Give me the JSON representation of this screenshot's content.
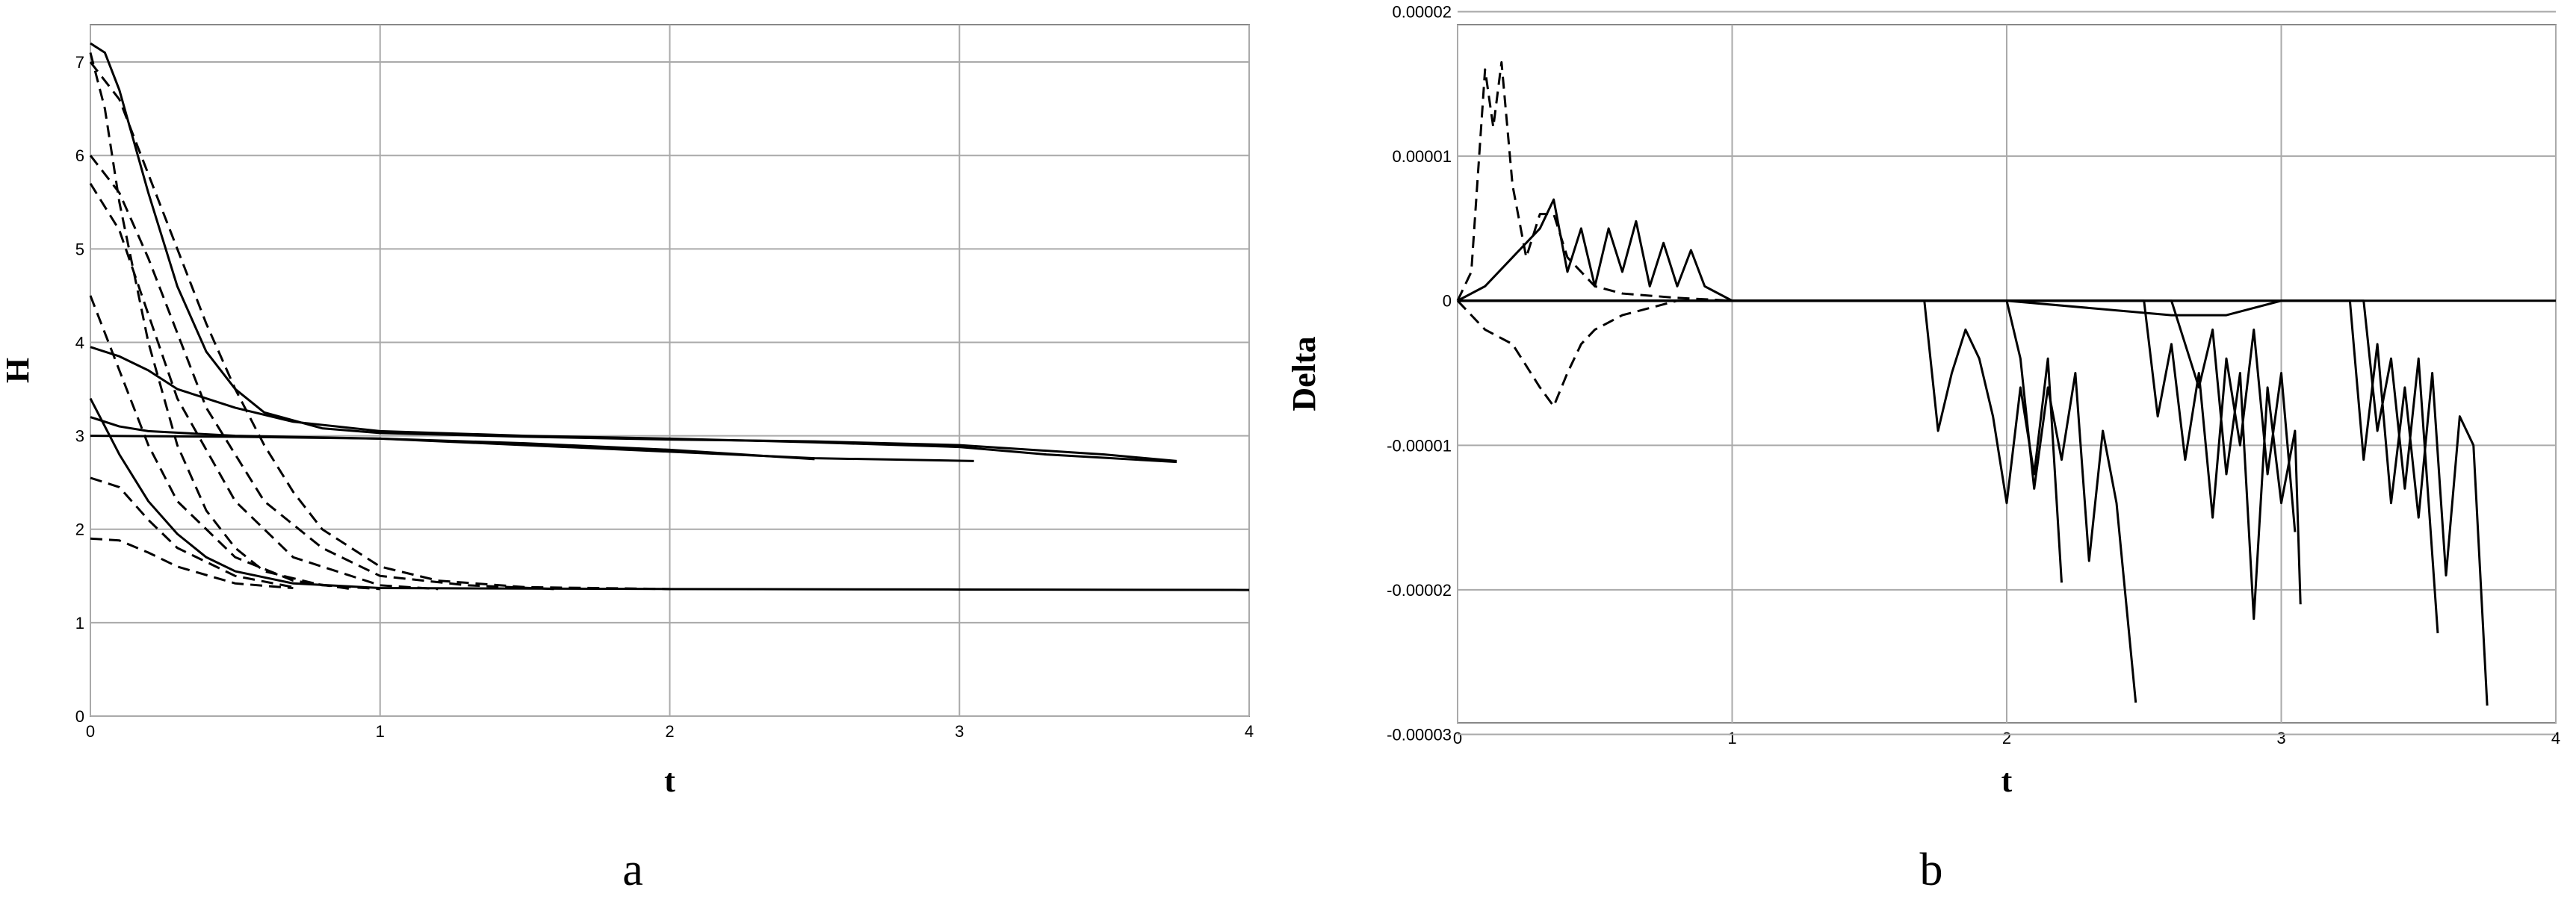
{
  "chart_data": [
    {
      "type": "line",
      "xlabel": "t",
      "ylabel": "H",
      "caption": "a",
      "xlim": [
        0,
        4
      ],
      "xticks": [
        0,
        1,
        2,
        3,
        4
      ],
      "ylim": [
        0,
        7.4
      ],
      "yticks": [
        0,
        1,
        2,
        3,
        4,
        5,
        6,
        7
      ],
      "grid": true,
      "series": [
        {
          "color": "#000000",
          "dash": false,
          "x": [
            0,
            0.05,
            0.1,
            0.2,
            0.3,
            0.4,
            0.5,
            0.6,
            0.8,
            1,
            1.5,
            2,
            2.5,
            3,
            3.5,
            3.75
          ],
          "values": [
            7.2,
            7.1,
            6.7,
            5.6,
            4.6,
            3.9,
            3.5,
            3.25,
            3.08,
            3.03,
            2.99,
            2.96,
            2.94,
            2.9,
            2.8,
            2.73
          ]
        },
        {
          "color": "#000000",
          "dash": false,
          "x": [
            0,
            0.1,
            0.2,
            0.3,
            0.5,
            0.7,
            1,
            1.5,
            2,
            2.5,
            3,
            3.3,
            3.75
          ],
          "values": [
            3.95,
            3.85,
            3.7,
            3.5,
            3.3,
            3.15,
            3.05,
            3.0,
            2.97,
            2.93,
            2.88,
            2.8,
            2.72
          ]
        },
        {
          "color": "#000000",
          "dash": false,
          "x": [
            0,
            0.1,
            0.2,
            0.5,
            1,
            1.5,
            2,
            2.5,
            3.05
          ],
          "values": [
            3.2,
            3.1,
            3.05,
            3.0,
            2.97,
            2.9,
            2.83,
            2.76,
            2.73
          ]
        },
        {
          "color": "#000000",
          "dash": false,
          "x": [
            0,
            0.5,
            1,
            1.5,
            2,
            2.5
          ],
          "values": [
            3.0,
            2.99,
            2.97,
            2.92,
            2.85,
            2.75
          ]
        },
        {
          "color": "#000000",
          "dash": false,
          "x": [
            0,
            0.1,
            0.2,
            0.3,
            0.4,
            0.5,
            0.7,
            1,
            2,
            3,
            4
          ],
          "values": [
            3.4,
            2.8,
            2.3,
            1.95,
            1.7,
            1.55,
            1.42,
            1.37,
            1.36,
            1.355,
            1.35
          ]
        },
        {
          "color": "#000000",
          "dash": true,
          "x": [
            0,
            0.1,
            0.2,
            0.3,
            0.4,
            0.5,
            0.6,
            0.7,
            0.8,
            1,
            1.2,
            1.5,
            2
          ],
          "values": [
            7.0,
            6.6,
            5.8,
            5.0,
            4.2,
            3.5,
            2.9,
            2.4,
            2.0,
            1.6,
            1.45,
            1.38,
            1.36
          ]
        },
        {
          "color": "#000000",
          "dash": true,
          "x": [
            0,
            0.1,
            0.2,
            0.3,
            0.4,
            0.6,
            0.8,
            1,
            1.3,
            1.6
          ],
          "values": [
            6.0,
            5.6,
            4.9,
            4.1,
            3.3,
            2.3,
            1.8,
            1.5,
            1.4,
            1.36
          ]
        },
        {
          "color": "#000000",
          "dash": true,
          "x": [
            0,
            0.1,
            0.2,
            0.3,
            0.5,
            0.7,
            1,
            1.2
          ],
          "values": [
            5.7,
            5.2,
            4.3,
            3.4,
            2.3,
            1.7,
            1.4,
            1.36
          ]
        },
        {
          "color": "#000000",
          "dash": true,
          "x": [
            0,
            0.1,
            0.2,
            0.3,
            0.5,
            0.7,
            0.9
          ],
          "values": [
            4.5,
            3.7,
            2.9,
            2.3,
            1.7,
            1.45,
            1.36
          ]
        },
        {
          "color": "#000000",
          "dash": true,
          "x": [
            0,
            0.1,
            0.2,
            0.3,
            0.5,
            0.7
          ],
          "values": [
            2.55,
            2.45,
            2.1,
            1.8,
            1.5,
            1.38
          ]
        },
        {
          "color": "#000000",
          "dash": true,
          "x": [
            0,
            0.1,
            0.2,
            0.3,
            0.5,
            0.7
          ],
          "values": [
            1.9,
            1.88,
            1.75,
            1.6,
            1.42,
            1.37
          ]
        },
        {
          "color": "#000000",
          "dash": true,
          "x": [
            0,
            0.05,
            0.1,
            0.2,
            0.3,
            0.4,
            0.5,
            0.6,
            0.8,
            1
          ],
          "values": [
            7.1,
            6.5,
            5.5,
            4.0,
            2.9,
            2.2,
            1.8,
            1.55,
            1.4,
            1.36
          ]
        }
      ]
    },
    {
      "type": "line",
      "xlabel": "t",
      "ylabel": "Delta",
      "caption": "b",
      "xlim": [
        0,
        4
      ],
      "xticks": [
        0,
        1,
        2,
        3,
        4
      ],
      "ylim": [
        -2.92e-05,
        1.91e-05
      ],
      "yticks": [
        -3e-05,
        -2e-05,
        -1e-05,
        0,
        1e-05,
        2e-05
      ],
      "grid": true,
      "series": [
        {
          "color": "#000000",
          "dash": true,
          "x": [
            0,
            0.05,
            0.1,
            0.13,
            0.16,
            0.2,
            0.25,
            0.3,
            0.35,
            0.4,
            0.5,
            0.6,
            0.8,
            1
          ],
          "values": [
            0,
            2e-06,
            1.6e-05,
            1.2e-05,
            1.65e-05,
            8e-06,
            3e-06,
            6e-06,
            6e-06,
            3e-06,
            1e-06,
            5e-07,
            2e-07,
            0
          ]
        },
        {
          "color": "#000000",
          "dash": true,
          "x": [
            0,
            0.1,
            0.2,
            0.3,
            0.35,
            0.4,
            0.45,
            0.5,
            0.6,
            0.8,
            1
          ],
          "values": [
            0,
            -2e-06,
            -3e-06,
            -6e-06,
            -7.3e-06,
            -5e-06,
            -3e-06,
            -2e-06,
            -1e-06,
            0,
            0
          ]
        },
        {
          "color": "#000000",
          "dash": false,
          "x": [
            0,
            0.1,
            0.2,
            0.3,
            0.35,
            0.4,
            0.45,
            0.5,
            0.55,
            0.6,
            0.65,
            0.7,
            0.75,
            0.8,
            0.85,
            0.9,
            1,
            1.2
          ],
          "values": [
            0,
            1e-06,
            3e-06,
            5e-06,
            7e-06,
            2e-06,
            5e-06,
            1e-06,
            5e-06,
            2e-06,
            5.5e-06,
            1e-06,
            4e-06,
            1e-06,
            3.5e-06,
            1e-06,
            0,
            0
          ]
        },
        {
          "color": "#000000",
          "dash": false,
          "x": [
            0,
            0.5,
            1,
            1.5,
            1.7,
            1.75,
            1.8,
            1.85,
            1.9,
            1.95,
            2,
            2.05,
            2.1,
            2.15,
            2.2
          ],
          "values": [
            0,
            0,
            0,
            0,
            0,
            -9e-06,
            -5e-06,
            -2e-06,
            -4e-06,
            -8e-06,
            -1.4e-05,
            -6e-06,
            -1.2e-05,
            -4e-06,
            -1.95e-05
          ]
        },
        {
          "color": "#000000",
          "dash": false,
          "x": [
            0,
            1,
            2,
            2.05,
            2.1,
            2.15,
            2.2,
            2.25,
            2.3,
            2.35,
            2.4,
            2.47
          ],
          "values": [
            0,
            0,
            0,
            -4e-06,
            -1.3e-05,
            -6e-06,
            -1.1e-05,
            -5e-06,
            -1.8e-05,
            -9e-06,
            -1.4e-05,
            -2.78e-05
          ]
        },
        {
          "color": "#000000",
          "dash": false,
          "x": [
            0,
            1,
            2.5,
            2.55,
            2.6,
            2.65,
            2.7,
            2.75,
            2.8,
            2.85,
            2.9,
            2.95,
            3,
            3.05
          ],
          "values": [
            0,
            0,
            0,
            -8e-06,
            -3e-06,
            -1.1e-05,
            -5e-06,
            -1.5e-05,
            -4e-06,
            -1e-05,
            -2e-06,
            -1.2e-05,
            -5e-06,
            -1.6e-05
          ]
        },
        {
          "color": "#000000",
          "dash": false,
          "x": [
            0,
            1,
            2.6,
            2.7,
            2.75,
            2.8,
            2.85,
            2.9,
            2.95,
            3,
            3.05,
            3.07
          ],
          "values": [
            0,
            0,
            0,
            -6e-06,
            -2e-06,
            -1.2e-05,
            -5e-06,
            -2.2e-05,
            -6e-06,
            -1.4e-05,
            -9e-06,
            -2.1e-05
          ]
        },
        {
          "color": "#000000",
          "dash": false,
          "x": [
            0,
            1,
            3.25,
            3.3,
            3.35,
            3.4,
            3.45,
            3.5,
            3.55,
            3.6,
            3.65,
            3.7,
            3.75
          ],
          "values": [
            0,
            0,
            0,
            -1.1e-05,
            -3e-06,
            -1.4e-05,
            -6e-06,
            -1.5e-05,
            -5e-06,
            -1.9e-05,
            -8e-06,
            -1e-05,
            -2.8e-05
          ]
        },
        {
          "color": "#000000",
          "dash": false,
          "x": [
            0,
            1,
            3.3,
            3.35,
            3.4,
            3.45,
            3.5,
            3.57
          ],
          "values": [
            0,
            0,
            0,
            -9e-06,
            -4e-06,
            -1.3e-05,
            -4e-06,
            -2.3e-05
          ]
        },
        {
          "color": "#000000",
          "dash": false,
          "x": [
            0,
            1,
            2,
            2.6,
            2.8,
            3,
            4
          ],
          "values": [
            0,
            0,
            0,
            -1e-06,
            -1e-06,
            0,
            0
          ]
        }
      ]
    }
  ]
}
